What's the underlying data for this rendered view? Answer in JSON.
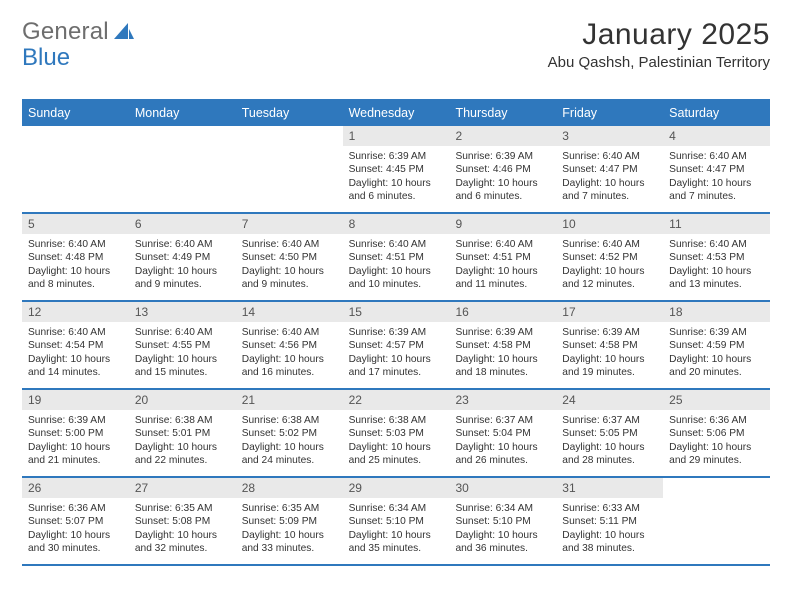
{
  "brand": {
    "word1": "General",
    "word2": "Blue"
  },
  "colors": {
    "accent": "#2f78bd",
    "header_text": "#ffffff",
    "daynum_bg": "#e9e9e9",
    "daynum_text": "#555555",
    "body_text": "#333333",
    "logo_gray": "#6e6e6e",
    "background": "#ffffff"
  },
  "title": "January 2025",
  "location": "Abu Qashsh, Palestinian Territory",
  "weekdays": [
    "Sunday",
    "Monday",
    "Tuesday",
    "Wednesday",
    "Thursday",
    "Friday",
    "Saturday"
  ],
  "layout": {
    "columns": 7,
    "rows": 5,
    "font_family": "Arial",
    "month_title_fontsize": 30,
    "location_fontsize": 15,
    "weekday_fontsize": 12.5,
    "daynum_fontsize": 12,
    "dayinfo_fontsize": 10.2,
    "row_border_color": "#2f78bd",
    "row_border_width": 2
  },
  "weeks": [
    [
      {
        "day": "",
        "sunrise": "",
        "sunset": "",
        "daylight1": "",
        "daylight2": ""
      },
      {
        "day": "",
        "sunrise": "",
        "sunset": "",
        "daylight1": "",
        "daylight2": ""
      },
      {
        "day": "",
        "sunrise": "",
        "sunset": "",
        "daylight1": "",
        "daylight2": ""
      },
      {
        "day": "1",
        "sunrise": "Sunrise: 6:39 AM",
        "sunset": "Sunset: 4:45 PM",
        "daylight1": "Daylight: 10 hours",
        "daylight2": "and 6 minutes."
      },
      {
        "day": "2",
        "sunrise": "Sunrise: 6:39 AM",
        "sunset": "Sunset: 4:46 PM",
        "daylight1": "Daylight: 10 hours",
        "daylight2": "and 6 minutes."
      },
      {
        "day": "3",
        "sunrise": "Sunrise: 6:40 AM",
        "sunset": "Sunset: 4:47 PM",
        "daylight1": "Daylight: 10 hours",
        "daylight2": "and 7 minutes."
      },
      {
        "day": "4",
        "sunrise": "Sunrise: 6:40 AM",
        "sunset": "Sunset: 4:47 PM",
        "daylight1": "Daylight: 10 hours",
        "daylight2": "and 7 minutes."
      }
    ],
    [
      {
        "day": "5",
        "sunrise": "Sunrise: 6:40 AM",
        "sunset": "Sunset: 4:48 PM",
        "daylight1": "Daylight: 10 hours",
        "daylight2": "and 8 minutes."
      },
      {
        "day": "6",
        "sunrise": "Sunrise: 6:40 AM",
        "sunset": "Sunset: 4:49 PM",
        "daylight1": "Daylight: 10 hours",
        "daylight2": "and 9 minutes."
      },
      {
        "day": "7",
        "sunrise": "Sunrise: 6:40 AM",
        "sunset": "Sunset: 4:50 PM",
        "daylight1": "Daylight: 10 hours",
        "daylight2": "and 9 minutes."
      },
      {
        "day": "8",
        "sunrise": "Sunrise: 6:40 AM",
        "sunset": "Sunset: 4:51 PM",
        "daylight1": "Daylight: 10 hours",
        "daylight2": "and 10 minutes."
      },
      {
        "day": "9",
        "sunrise": "Sunrise: 6:40 AM",
        "sunset": "Sunset: 4:51 PM",
        "daylight1": "Daylight: 10 hours",
        "daylight2": "and 11 minutes."
      },
      {
        "day": "10",
        "sunrise": "Sunrise: 6:40 AM",
        "sunset": "Sunset: 4:52 PM",
        "daylight1": "Daylight: 10 hours",
        "daylight2": "and 12 minutes."
      },
      {
        "day": "11",
        "sunrise": "Sunrise: 6:40 AM",
        "sunset": "Sunset: 4:53 PM",
        "daylight1": "Daylight: 10 hours",
        "daylight2": "and 13 minutes."
      }
    ],
    [
      {
        "day": "12",
        "sunrise": "Sunrise: 6:40 AM",
        "sunset": "Sunset: 4:54 PM",
        "daylight1": "Daylight: 10 hours",
        "daylight2": "and 14 minutes."
      },
      {
        "day": "13",
        "sunrise": "Sunrise: 6:40 AM",
        "sunset": "Sunset: 4:55 PM",
        "daylight1": "Daylight: 10 hours",
        "daylight2": "and 15 minutes."
      },
      {
        "day": "14",
        "sunrise": "Sunrise: 6:40 AM",
        "sunset": "Sunset: 4:56 PM",
        "daylight1": "Daylight: 10 hours",
        "daylight2": "and 16 minutes."
      },
      {
        "day": "15",
        "sunrise": "Sunrise: 6:39 AM",
        "sunset": "Sunset: 4:57 PM",
        "daylight1": "Daylight: 10 hours",
        "daylight2": "and 17 minutes."
      },
      {
        "day": "16",
        "sunrise": "Sunrise: 6:39 AM",
        "sunset": "Sunset: 4:58 PM",
        "daylight1": "Daylight: 10 hours",
        "daylight2": "and 18 minutes."
      },
      {
        "day": "17",
        "sunrise": "Sunrise: 6:39 AM",
        "sunset": "Sunset: 4:58 PM",
        "daylight1": "Daylight: 10 hours",
        "daylight2": "and 19 minutes."
      },
      {
        "day": "18",
        "sunrise": "Sunrise: 6:39 AM",
        "sunset": "Sunset: 4:59 PM",
        "daylight1": "Daylight: 10 hours",
        "daylight2": "and 20 minutes."
      }
    ],
    [
      {
        "day": "19",
        "sunrise": "Sunrise: 6:39 AM",
        "sunset": "Sunset: 5:00 PM",
        "daylight1": "Daylight: 10 hours",
        "daylight2": "and 21 minutes."
      },
      {
        "day": "20",
        "sunrise": "Sunrise: 6:38 AM",
        "sunset": "Sunset: 5:01 PM",
        "daylight1": "Daylight: 10 hours",
        "daylight2": "and 22 minutes."
      },
      {
        "day": "21",
        "sunrise": "Sunrise: 6:38 AM",
        "sunset": "Sunset: 5:02 PM",
        "daylight1": "Daylight: 10 hours",
        "daylight2": "and 24 minutes."
      },
      {
        "day": "22",
        "sunrise": "Sunrise: 6:38 AM",
        "sunset": "Sunset: 5:03 PM",
        "daylight1": "Daylight: 10 hours",
        "daylight2": "and 25 minutes."
      },
      {
        "day": "23",
        "sunrise": "Sunrise: 6:37 AM",
        "sunset": "Sunset: 5:04 PM",
        "daylight1": "Daylight: 10 hours",
        "daylight2": "and 26 minutes."
      },
      {
        "day": "24",
        "sunrise": "Sunrise: 6:37 AM",
        "sunset": "Sunset: 5:05 PM",
        "daylight1": "Daylight: 10 hours",
        "daylight2": "and 28 minutes."
      },
      {
        "day": "25",
        "sunrise": "Sunrise: 6:36 AM",
        "sunset": "Sunset: 5:06 PM",
        "daylight1": "Daylight: 10 hours",
        "daylight2": "and 29 minutes."
      }
    ],
    [
      {
        "day": "26",
        "sunrise": "Sunrise: 6:36 AM",
        "sunset": "Sunset: 5:07 PM",
        "daylight1": "Daylight: 10 hours",
        "daylight2": "and 30 minutes."
      },
      {
        "day": "27",
        "sunrise": "Sunrise: 6:35 AM",
        "sunset": "Sunset: 5:08 PM",
        "daylight1": "Daylight: 10 hours",
        "daylight2": "and 32 minutes."
      },
      {
        "day": "28",
        "sunrise": "Sunrise: 6:35 AM",
        "sunset": "Sunset: 5:09 PM",
        "daylight1": "Daylight: 10 hours",
        "daylight2": "and 33 minutes."
      },
      {
        "day": "29",
        "sunrise": "Sunrise: 6:34 AM",
        "sunset": "Sunset: 5:10 PM",
        "daylight1": "Daylight: 10 hours",
        "daylight2": "and 35 minutes."
      },
      {
        "day": "30",
        "sunrise": "Sunrise: 6:34 AM",
        "sunset": "Sunset: 5:10 PM",
        "daylight1": "Daylight: 10 hours",
        "daylight2": "and 36 minutes."
      },
      {
        "day": "31",
        "sunrise": "Sunrise: 6:33 AM",
        "sunset": "Sunset: 5:11 PM",
        "daylight1": "Daylight: 10 hours",
        "daylight2": "and 38 minutes."
      },
      {
        "day": "",
        "sunrise": "",
        "sunset": "",
        "daylight1": "",
        "daylight2": ""
      }
    ]
  ]
}
